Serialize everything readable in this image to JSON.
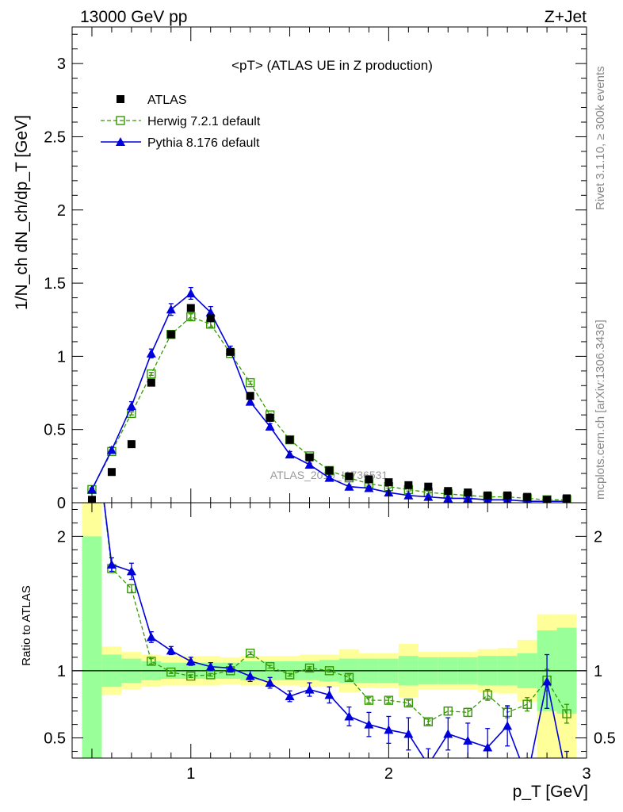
{
  "header": {
    "energy_label": "13000 GeV pp",
    "process_label": "Z+Jet"
  },
  "side_text": {
    "rivet": "Rivet 3.1.10, ≥ 300k events",
    "mcplots": "mcplots.cern.ch [arXiv:1306.3436]"
  },
  "chart_data": [
    {
      "type": "scatter",
      "panel": "main",
      "title": "<pT> (ATLAS UE in Z production)",
      "ylabel": "1/N_ch dN_ch/dp_T [GeV]",
      "xlim": [
        0.4,
        3.0
      ],
      "ylim": [
        0,
        3.25
      ],
      "watermark": "ATLAS_2019_I1736531",
      "legend_position": "top-left",
      "x": [
        0.5,
        0.6,
        0.7,
        0.8,
        0.9,
        1.0,
        1.1,
        1.2,
        1.3,
        1.4,
        1.5,
        1.6,
        1.7,
        1.8,
        1.9,
        2.0,
        2.1,
        2.2,
        2.3,
        2.4,
        2.5,
        2.6,
        2.7,
        2.8,
        2.9
      ],
      "series": [
        {
          "name": "ATLAS",
          "style": "data",
          "color": "#000000",
          "values": [
            0.02,
            0.21,
            0.4,
            0.82,
            1.15,
            1.33,
            1.26,
            1.03,
            0.73,
            0.58,
            0.43,
            0.31,
            0.22,
            0.18,
            0.16,
            0.14,
            0.12,
            0.11,
            0.08,
            0.07,
            0.05,
            0.05,
            0.04,
            0.02,
            0.03
          ]
        },
        {
          "name": "Herwig 7.2.1 default",
          "style": "herwig",
          "color": "#339900",
          "values": [
            0.09,
            0.35,
            0.61,
            0.88,
            1.15,
            1.27,
            1.22,
            1.02,
            0.82,
            0.6,
            0.43,
            0.32,
            0.22,
            0.17,
            0.13,
            0.11,
            0.09,
            0.07,
            0.06,
            0.05,
            0.04,
            0.04,
            0.03,
            0.02,
            0.02
          ],
          "errors": [
            0.01,
            0.01,
            0.01,
            0.01,
            0.01,
            0.02,
            0.02,
            0.01,
            0.01,
            0.01,
            0.01,
            0.01,
            0.01,
            0.01,
            0.01,
            0.01,
            0.01,
            0.01,
            0.01,
            0.01,
            0.01,
            0.01,
            0.01,
            0.01,
            0.01
          ]
        },
        {
          "name": "Pythia 8.176 default",
          "style": "pythia",
          "color": "#0000dd",
          "values": [
            0.09,
            0.36,
            0.66,
            1.02,
            1.32,
            1.43,
            1.3,
            1.04,
            0.69,
            0.52,
            0.33,
            0.26,
            0.17,
            0.11,
            0.1,
            0.07,
            0.05,
            0.04,
            0.03,
            0.03,
            0.02,
            0.02,
            0.01,
            0.01,
            0.01
          ],
          "errors": [
            0.01,
            0.02,
            0.03,
            0.03,
            0.04,
            0.04,
            0.04,
            0.03,
            0.02,
            0.02,
            0.02,
            0.01,
            0.01,
            0.01,
            0.01,
            0.01,
            0.01,
            0.01,
            0.01,
            0.01,
            0.01,
            0.01,
            0.01,
            0.01,
            0.01
          ]
        }
      ]
    },
    {
      "type": "line",
      "panel": "ratio",
      "ylabel": "Ratio to ATLAS",
      "xlabel": "p_T [GeV]",
      "xlim": [
        0.4,
        3.0
      ],
      "ylim": [
        0.35,
        2.25
      ],
      "x_ticks": [
        1,
        2,
        3
      ],
      "x": [
        0.5,
        0.6,
        0.7,
        0.8,
        0.9,
        1.0,
        1.1,
        1.2,
        1.3,
        1.4,
        1.5,
        1.6,
        1.7,
        1.8,
        1.9,
        2.0,
        2.1,
        2.2,
        2.3,
        2.4,
        2.5,
        2.6,
        2.7,
        2.8,
        2.9
      ],
      "bands": {
        "stat_color": "#99ff99",
        "total_color": "#ffff99",
        "stat": [
          [
            0.35,
            2.0
          ],
          [
            0.88,
            1.12
          ],
          [
            0.91,
            1.09
          ],
          [
            0.93,
            1.07
          ],
          [
            0.94,
            1.06
          ],
          [
            0.94,
            1.06
          ],
          [
            0.94,
            1.06
          ],
          [
            0.94,
            1.06
          ],
          [
            0.93,
            1.07
          ],
          [
            0.93,
            1.07
          ],
          [
            0.93,
            1.07
          ],
          [
            0.93,
            1.07
          ],
          [
            0.92,
            1.08
          ],
          [
            0.91,
            1.09
          ],
          [
            0.91,
            1.09
          ],
          [
            0.91,
            1.09
          ],
          [
            0.89,
            1.11
          ],
          [
            0.9,
            1.1
          ],
          [
            0.9,
            1.1
          ],
          [
            0.9,
            1.1
          ],
          [
            0.89,
            1.11
          ],
          [
            0.89,
            1.11
          ],
          [
            0.87,
            1.13
          ],
          [
            0.7,
            1.3
          ],
          [
            0.68,
            1.32
          ]
        ],
        "total": [
          [
            0.35,
            2.25
          ],
          [
            0.82,
            1.18
          ],
          [
            0.86,
            1.14
          ],
          [
            0.88,
            1.12
          ],
          [
            0.89,
            1.11
          ],
          [
            0.89,
            1.11
          ],
          [
            0.89,
            1.11
          ],
          [
            0.9,
            1.1
          ],
          [
            0.89,
            1.11
          ],
          [
            0.89,
            1.11
          ],
          [
            0.89,
            1.11
          ],
          [
            0.88,
            1.12
          ],
          [
            0.88,
            1.12
          ],
          [
            0.84,
            1.16
          ],
          [
            0.87,
            1.13
          ],
          [
            0.87,
            1.13
          ],
          [
            0.8,
            1.2
          ],
          [
            0.86,
            1.14
          ],
          [
            0.86,
            1.14
          ],
          [
            0.86,
            1.14
          ],
          [
            0.84,
            1.16
          ],
          [
            0.83,
            1.17
          ],
          [
            0.77,
            1.23
          ],
          [
            0.35,
            1.42
          ],
          [
            0.35,
            1.42
          ]
        ]
      },
      "reference_line": 1.0,
      "series": [
        {
          "name": "Herwig 7.2.1 default",
          "style": "herwig",
          "color": "#339900",
          "values": [
            3.0,
            1.76,
            1.61,
            1.07,
            0.99,
            0.96,
            0.97,
            1.0,
            1.13,
            1.03,
            0.97,
            1.02,
            1.0,
            0.95,
            0.78,
            0.78,
            0.76,
            0.62,
            0.7,
            0.69,
            0.82,
            0.69,
            0.75,
            0.93,
            0.68
          ],
          "errors": [
            0.02,
            0.03,
            0.03,
            0.02,
            0.01,
            0.01,
            0.01,
            0.01,
            0.01,
            0.01,
            0.01,
            0.01,
            0.01,
            0.02,
            0.02,
            0.02,
            0.02,
            0.02,
            0.03,
            0.03,
            0.04,
            0.04,
            0.05,
            0.08,
            0.07
          ]
        },
        {
          "name": "Pythia 8.176 default",
          "style": "pythia",
          "color": "#0000dd",
          "values": [
            3.0,
            1.79,
            1.74,
            1.25,
            1.15,
            1.07,
            1.03,
            1.02,
            0.96,
            0.91,
            0.81,
            0.86,
            0.82,
            0.66,
            0.6,
            0.56,
            0.53,
            0.3,
            0.53,
            0.48,
            0.43,
            0.59,
            0.2,
            0.92,
            0.2
          ],
          "errors": [
            0.05,
            0.05,
            0.06,
            0.04,
            0.03,
            0.03,
            0.03,
            0.03,
            0.04,
            0.04,
            0.04,
            0.05,
            0.06,
            0.07,
            0.09,
            0.1,
            0.12,
            0.12,
            0.12,
            0.13,
            0.14,
            0.15,
            0.15,
            0.2,
            0.2
          ]
        }
      ]
    }
  ]
}
